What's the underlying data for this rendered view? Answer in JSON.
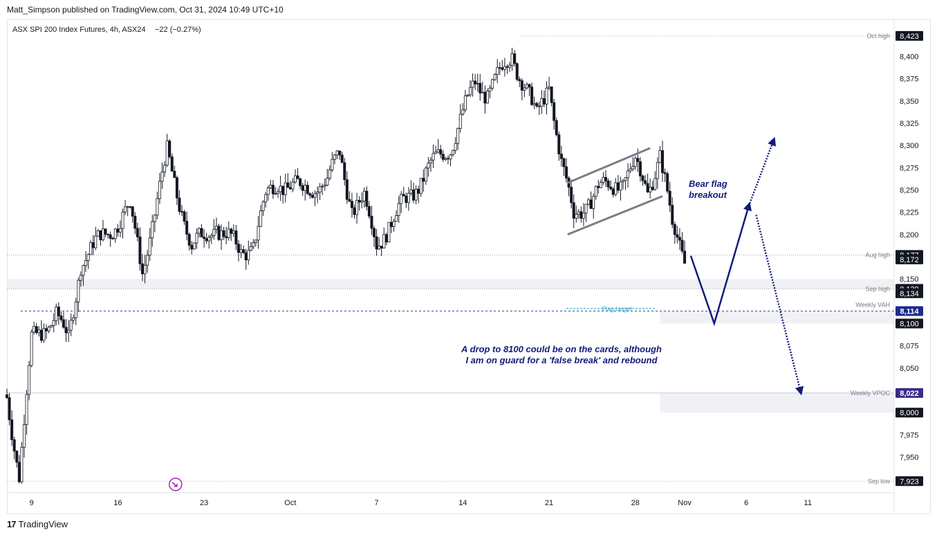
{
  "header": {
    "published": "Matt_Simpson published on TradingView.com, Oct 31, 2024 10:49 UTC+10"
  },
  "footer": {
    "logo_glyph": "17",
    "brand": "TradingView"
  },
  "colors": {
    "axis_text": "#131722",
    "grid_label": "#787b86",
    "candle": "#131722",
    "annotation": "#131b7a",
    "flag_target": "#26a9c8",
    "badge_dark": "#131722",
    "badge_blue": "#1c2b8f",
    "badge_purple": "#3d2a8a",
    "vpoc_line": "#b7b3d9"
  },
  "chart_data": {
    "type": "candlestick",
    "title": "ASX SPI 200 Index Futures, 4h, ASX24",
    "change": "−22 (−0.27%)",
    "ylim": [
      7910,
      8440
    ],
    "y_ticks": [
      7950,
      7975,
      8000,
      8050,
      8075,
      8150,
      8200,
      8225,
      8250,
      8275,
      8300,
      8325,
      8350,
      8375,
      8400
    ],
    "y_tick_labels": [
      "7,950",
      "7,975",
      "8,000",
      "8,050",
      "8,075",
      "8,150",
      "8,200",
      "8,225",
      "8,250",
      "8,275",
      "8,300",
      "8,325",
      "8,350",
      "8,375",
      "8,400"
    ],
    "x_ticks": [
      {
        "label": "9",
        "day": 9
      },
      {
        "label": "16",
        "day": 16
      },
      {
        "label": "23",
        "day": 23
      },
      {
        "label": "Oct",
        "day": 30
      },
      {
        "label": "7",
        "day": 37
      },
      {
        "label": "14",
        "day": 44
      },
      {
        "label": "21",
        "day": 51
      },
      {
        "label": "28",
        "day": 58
      },
      {
        "label": "Nov",
        "day": 62
      },
      {
        "label": "6",
        "day": 67
      },
      {
        "label": "11",
        "day": 72
      }
    ],
    "anchors": [
      [
        7,
        8020
      ],
      [
        8,
        7930
      ],
      [
        9,
        8080
      ],
      [
        11,
        8110
      ],
      [
        12,
        8080
      ],
      [
        13,
        8170
      ],
      [
        15,
        8200
      ],
      [
        17,
        8230
      ],
      [
        18,
        8160
      ],
      [
        20,
        8290
      ],
      [
        22,
        8185
      ],
      [
        24,
        8210
      ],
      [
        26,
        8180
      ],
      [
        27,
        8190
      ],
      [
        28,
        8240
      ],
      [
        29,
        8260
      ],
      [
        31,
        8250
      ],
      [
        33,
        8260
      ],
      [
        34,
        8290
      ],
      [
        35,
        8230
      ],
      [
        36,
        8240
      ],
      [
        37,
        8190
      ],
      [
        39,
        8230
      ],
      [
        41,
        8270
      ],
      [
        43,
        8300
      ],
      [
        45,
        8370
      ],
      [
        46,
        8360
      ],
      [
        48,
        8400
      ],
      [
        49,
        8370
      ],
      [
        50,
        8330
      ],
      [
        51,
        8370
      ],
      [
        52,
        8280
      ],
      [
        53,
        8220
      ],
      [
        55,
        8250
      ],
      [
        57,
        8260
      ],
      [
        58,
        8280
      ],
      [
        59,
        8250
      ],
      [
        60,
        8290
      ],
      [
        61,
        8210
      ],
      [
        62,
        8175
      ]
    ],
    "price_levels": [
      {
        "label": "Oct high",
        "value": 8423,
        "badge": "8,423",
        "style": "dark"
      },
      {
        "label": "Aug high",
        "value": 8177,
        "badge": "8,177",
        "style": "dark"
      },
      {
        "label": "",
        "value": 8172,
        "badge": "8,172",
        "style": "dark"
      },
      {
        "label": "Sep high",
        "value": 8139,
        "badge": "8,139",
        "style": "dark"
      },
      {
        "label": "",
        "value": 8134,
        "badge": "8,134",
        "style": "dark"
      },
      {
        "label": "Weekly VAH",
        "value": 8114,
        "badge": "8,114",
        "style": "blue"
      },
      {
        "label": "",
        "value": 8100,
        "badge": "8,100",
        "style": "dark"
      },
      {
        "label": "Weekly VPOC",
        "value": 8022,
        "badge": "8,022",
        "style": "purple"
      },
      {
        "label": "",
        "value": 8000,
        "badge": "8,000",
        "style": "dark"
      },
      {
        "label": "Sep low",
        "value": 7923,
        "badge": "7,923",
        "style": "dark"
      }
    ],
    "zones": [
      {
        "from_day": 7,
        "to_day": 79,
        "low": 8139,
        "high": 8150
      },
      {
        "from_day": 60,
        "to_day": 79,
        "low": 8100,
        "high": 8114
      },
      {
        "from_day": 60,
        "to_day": 79,
        "low": 8000,
        "high": 8022
      }
    ],
    "flag_channel": {
      "upper": [
        [
          52.5,
          8258
        ],
        [
          59.2,
          8297
        ]
      ],
      "lower": [
        [
          52.5,
          8200
        ],
        [
          60.2,
          8243
        ]
      ]
    },
    "flag_target_label": "Flag target",
    "flag_target_value": 8117,
    "annotations": {
      "bear_flag": [
        "Bear flag",
        "breakout"
      ],
      "scenario": [
        "A drop to 8100 could be on the cards, although",
        "I am on guard for a 'false break' and rebound"
      ]
    },
    "projections": {
      "drop_path": [
        [
          62.5,
          8176
        ],
        [
          64.4,
          8100
        ],
        [
          67.2,
          8232
        ]
      ],
      "up_dotted": [
        [
          67.2,
          8232
        ],
        [
          69.2,
          8305
        ]
      ],
      "down_dotted": [
        [
          67.8,
          8222
        ],
        [
          71.4,
          8024
        ]
      ]
    },
    "marker_icon": "arrow-circle-icon",
    "marker_day": 19
  }
}
